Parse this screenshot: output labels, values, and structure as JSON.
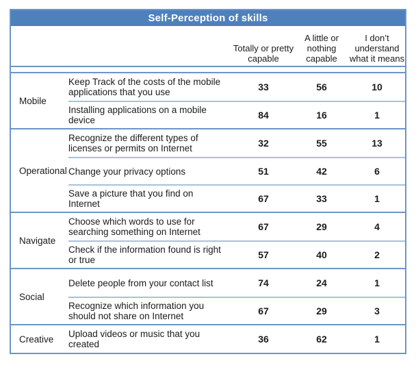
{
  "colors": {
    "title_bg": "#4e80bc",
    "title_text": "#ffffff",
    "outer_border": "#6b95c7",
    "row_divider": "#a6c1de",
    "body_text": "#1a1a1a"
  },
  "chart_data": {
    "type": "table",
    "title": "Self-Perception of skills",
    "columns": [
      "Totally or pretty capable",
      "A little or nothing capable",
      "I don’t understand what it means"
    ],
    "groups": [
      {
        "label": "Mobile",
        "rows": [
          {
            "skill": "Keep Track of the costs of the mobile applications that you use",
            "values": [
              33,
              56,
              10
            ]
          },
          {
            "skill": "Installing applications on a mobile device",
            "values": [
              84,
              16,
              1
            ]
          }
        ]
      },
      {
        "label": "Operational",
        "rows": [
          {
            "skill": "Recognize the different types of licenses or permits on Internet",
            "values": [
              32,
              55,
              13
            ]
          },
          {
            "skill": "Change your privacy options",
            "values": [
              51,
              42,
              6
            ]
          },
          {
            "skill": "Save a picture that you find on Internet",
            "values": [
              67,
              33,
              1
            ]
          }
        ]
      },
      {
        "label": "Navigate",
        "rows": [
          {
            "skill": "Choose which words to use for searching something on Internet",
            "values": [
              67,
              29,
              4
            ]
          },
          {
            "skill": "Check if the information found is right or true",
            "values": [
              57,
              40,
              2
            ]
          }
        ]
      },
      {
        "label": "Social",
        "rows": [
          {
            "skill": "Delete people from your contact list",
            "values": [
              74,
              24,
              1
            ]
          },
          {
            "skill": "Recognize which information you should not share on Internet",
            "values": [
              67,
              29,
              3
            ]
          }
        ]
      },
      {
        "label": "Creative",
        "rows": [
          {
            "skill": "Upload videos or music that you created",
            "values": [
              36,
              62,
              1
            ]
          }
        ]
      }
    ]
  }
}
